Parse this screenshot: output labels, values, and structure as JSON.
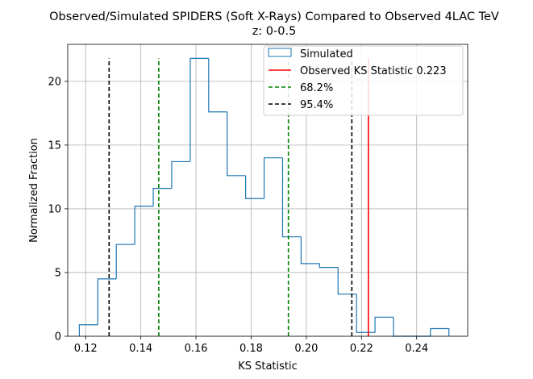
{
  "chart_data": {
    "type": "histogram",
    "title": "Observed/Simulated SPIDERS (Soft X-Rays) Compared to Observed 4LAC TeV",
    "subtitle": "z: 0-0.5",
    "xlabel": "KS Statistic",
    "ylabel": "Normalized Fraction",
    "xlim": [
      0.1135,
      0.2585
    ],
    "ylim": [
      0,
      22.9
    ],
    "xticks": [
      "0.12",
      "0.14",
      "0.16",
      "0.18",
      "0.20",
      "0.22",
      "0.24"
    ],
    "yticks": [
      "0",
      "5",
      "10",
      "15",
      "20"
    ],
    "grid": true,
    "legend_position": "top-right",
    "colors": {
      "simulated": "#1f77b4",
      "observed": "#ff0000",
      "ci68": "#008000",
      "ci95": "#000000",
      "grid": "#b0b0b0"
    },
    "histogram": {
      "name": "Simulated",
      "bin_edges": [
        0.1177,
        0.1244,
        0.1311,
        0.1378,
        0.1445,
        0.1512,
        0.1579,
        0.1646,
        0.1713,
        0.178,
        0.1847,
        0.1914,
        0.1981,
        0.2048,
        0.2115,
        0.2182,
        0.2249,
        0.2316,
        0.2383,
        0.245,
        0.2517
      ],
      "values": [
        0.9,
        4.5,
        7.2,
        10.2,
        11.6,
        13.7,
        21.8,
        17.6,
        12.6,
        10.8,
        14.0,
        7.8,
        5.7,
        5.4,
        3.3,
        0.3,
        1.5,
        0.0,
        0.0,
        0.6
      ]
    },
    "observed_ks": {
      "name": "Observed KS Statistic 0.223",
      "x": 0.2225
    },
    "confidence_68": {
      "name": "68.2%",
      "lower": 0.1465,
      "upper": 0.1935
    },
    "confidence_95": {
      "name": "95.4%",
      "lower": 0.1285,
      "upper": 0.2165
    },
    "vline_top": 21.8
  }
}
